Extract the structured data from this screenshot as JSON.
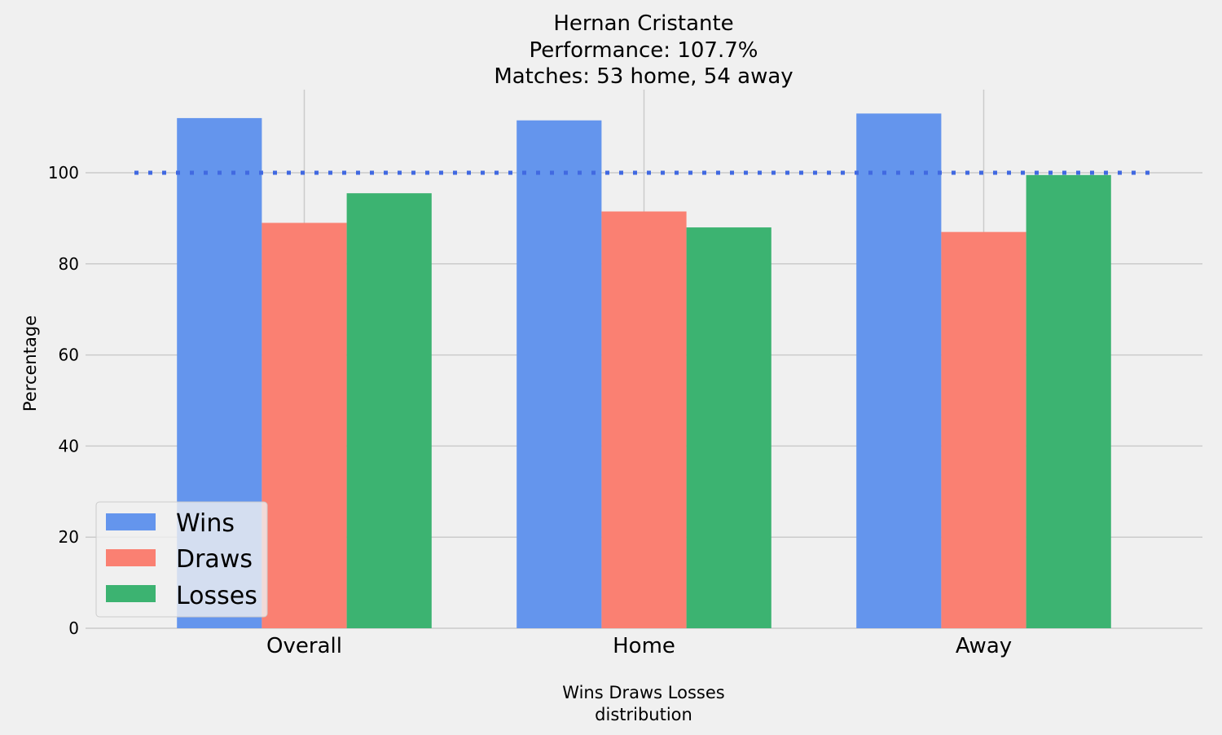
{
  "chart_data": {
    "type": "bar",
    "title": [
      "Hernan Cristante",
      "Performance: 107.7%",
      "Matches: 53 home, 54 away"
    ],
    "categories": [
      "Overall",
      "Home",
      "Away"
    ],
    "series": [
      {
        "name": "Wins",
        "color": "#6495ed",
        "values": [
          112,
          111.5,
          113
        ]
      },
      {
        "name": "Draws",
        "color": "#fa8072",
        "values": [
          89,
          91.5,
          87
        ]
      },
      {
        "name": "Losses",
        "color": "#3cb371",
        "values": [
          95.5,
          88,
          99.5
        ]
      }
    ],
    "reference_line": {
      "value": 100,
      "color": "#4169e1",
      "style": "dotted"
    },
    "xlabel": [
      "Wins Draws Losses",
      "distribution"
    ],
    "ylabel": "Percentage",
    "yticks": [
      0,
      20,
      40,
      60,
      80,
      100
    ],
    "ylim": [
      0,
      118
    ],
    "grid": true,
    "legend_position": "lower-left"
  }
}
